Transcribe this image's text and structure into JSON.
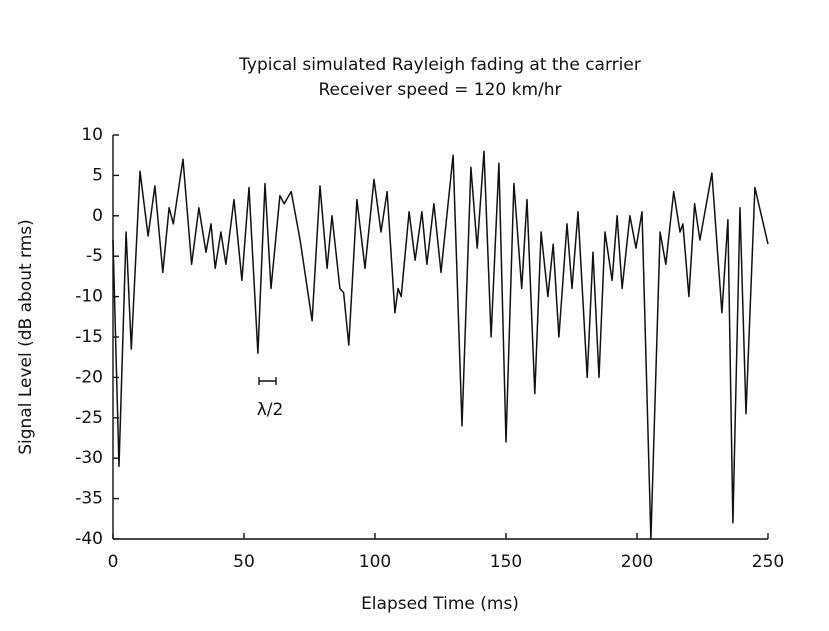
{
  "chart_data": {
    "type": "line",
    "title": "Typical simulated Rayleigh fading at the carrier",
    "subtitle": "Receiver speed = 120 km/hr",
    "x_label": "Elapsed Time (ms)",
    "y_label": "Signal Level (dB about rms)",
    "annotation": "λ/2",
    "x": [
      0,
      2.3,
      5,
      7,
      10.3,
      13.4,
      16,
      19,
      21.4,
      23,
      26.7,
      30,
      32.8,
      35.5,
      37.4,
      39,
      41.2,
      43.1,
      46.2,
      49.2,
      51.9,
      55.3,
      58,
      60.3,
      63.7,
      65.3,
      68,
      71.4,
      76,
      79,
      81.7,
      83.6,
      86.6,
      88,
      90,
      93.1,
      96.2,
      99.6,
      102.3,
      104.6,
      107.6,
      108.8,
      110,
      113,
      115.3,
      117.9,
      119.8,
      122.5,
      125.2,
      129.8,
      133.2,
      136.6,
      139,
      141.6,
      144.3,
      147.3,
      150,
      153,
      156,
      158,
      161,
      163.4,
      166,
      168,
      170.2,
      173.3,
      175.2,
      177.5,
      181,
      183.2,
      185.5,
      187.8,
      190.5,
      192.4,
      194.3,
      197.3,
      199.6,
      201.9,
      205.3,
      208.8,
      211,
      214,
      216.4,
      217.5,
      219.8,
      222,
      224,
      228.6,
      232.4,
      234.7,
      236.6,
      239.3,
      241.6,
      245,
      250
    ],
    "series": [
      {
        "name": "Signal level",
        "color": "#111111",
        "values": [
          -3,
          -31,
          -2,
          -16.5,
          5.5,
          -2.5,
          3.7,
          -7,
          1,
          -1,
          7,
          -6,
          1,
          -4.5,
          -1,
          -6.5,
          -2,
          -6,
          2,
          -8,
          3.5,
          -17,
          4,
          -9,
          2.5,
          1.5,
          3,
          -3,
          -13,
          3.7,
          -6.5,
          0,
          -9,
          -9.5,
          -16,
          2,
          -6.5,
          4.5,
          -2,
          3,
          -12,
          -9,
          -10,
          0.5,
          -5.5,
          0.5,
          -6,
          1.5,
          -7,
          7.5,
          -26,
          6,
          -4,
          8,
          -15,
          6.5,
          -28,
          4,
          -9,
          2,
          -22,
          -2,
          -10,
          -3.5,
          -15,
          -1,
          -9,
          0.5,
          -20,
          -4.5,
          -20,
          -2,
          -8,
          0,
          -9,
          0,
          -4,
          0.5,
          -40,
          -2,
          -6,
          3,
          -2,
          -1,
          -10,
          1.5,
          -3,
          5.3,
          -12,
          -0.5,
          -38,
          1,
          -24.5,
          3.5,
          -3.5
        ]
      }
    ],
    "xlim": [
      0,
      250
    ],
    "xticks": [
      0,
      50,
      100,
      150,
      200,
      250
    ],
    "ylim": [
      -40,
      10
    ],
    "yticks": [
      -40,
      -35,
      -30,
      -25,
      -20,
      -15,
      -10,
      -5,
      0,
      5,
      10
    ],
    "grid": false
  }
}
